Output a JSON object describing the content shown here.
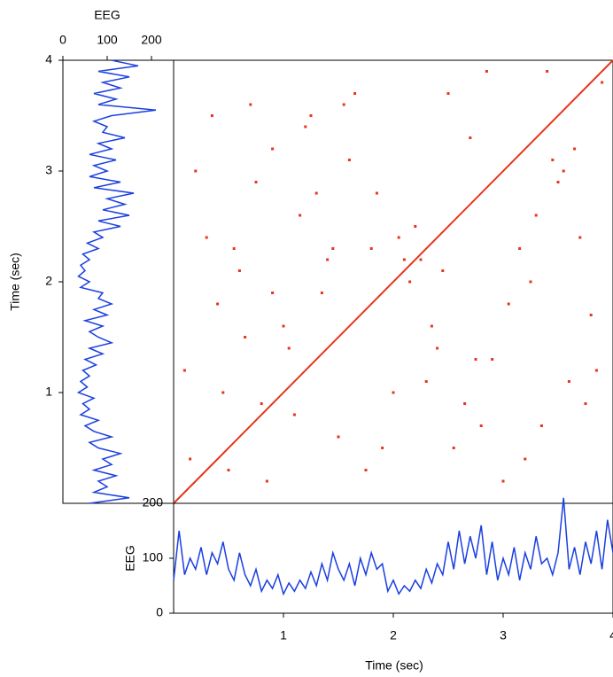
{
  "chart_data": [
    {
      "type": "line",
      "orientation": "vertical",
      "xlabel": "EEG",
      "ylabel": "Time (sec)",
      "xlim": [
        0,
        250
      ],
      "xticks": [
        0,
        100,
        200
      ],
      "ylim": [
        0,
        4
      ],
      "yticks": [
        1,
        2,
        3,
        4
      ],
      "series": [
        {
          "color": "#1a3fe0",
          "x": [
            0,
            0.05,
            0.1,
            0.15,
            0.2,
            0.25,
            0.3,
            0.35,
            0.4,
            0.45,
            0.5,
            0.55,
            0.6,
            0.65,
            0.7,
            0.75,
            0.8,
            0.85,
            0.9,
            0.95,
            1,
            1.05,
            1.1,
            1.15,
            1.2,
            1.25,
            1.3,
            1.35,
            1.4,
            1.45,
            1.5,
            1.55,
            1.6,
            1.65,
            1.7,
            1.75,
            1.8,
            1.85,
            1.9,
            1.95,
            2,
            2.05,
            2.1,
            2.15,
            2.2,
            2.25,
            2.3,
            2.35,
            2.4,
            2.45,
            2.5,
            2.55,
            2.6,
            2.65,
            2.7,
            2.75,
            2.8,
            2.85,
            2.9,
            2.95,
            3,
            3.05,
            3.1,
            3.15,
            3.2,
            3.25,
            3.3,
            3.35,
            3.4,
            3.45,
            3.5,
            3.55,
            3.6,
            3.65,
            3.7,
            3.75,
            3.8,
            3.85,
            3.9,
            3.95,
            4
          ],
          "values": [
            60,
            150,
            70,
            100,
            80,
            120,
            70,
            110,
            90,
            130,
            80,
            60,
            110,
            70,
            50,
            80,
            40,
            60,
            45,
            70,
            35,
            55,
            40,
            60,
            45,
            75,
            50,
            90,
            60,
            110,
            80,
            60,
            90,
            50,
            100,
            70,
            110,
            80,
            90,
            40,
            60,
            35,
            50,
            40,
            60,
            45,
            80,
            55,
            90,
            70,
            130,
            80,
            150,
            90,
            140,
            100,
            160,
            70,
            130,
            60,
            100,
            70,
            120,
            60,
            110,
            80,
            140,
            90,
            100,
            70,
            110,
            210,
            80,
            120,
            70,
            130,
            90,
            150,
            80,
            170,
            110
          ]
        }
      ]
    },
    {
      "type": "scatter",
      "xlim": [
        0,
        4
      ],
      "ylim": [
        0,
        4
      ],
      "series": [
        {
          "type": "line",
          "color": "#e8341c",
          "x": [
            0,
            4
          ],
          "values": [
            0,
            4
          ]
        },
        {
          "type": "scatter",
          "color": "#e8341c",
          "x": [
            0.1,
            0.3,
            0.5,
            0.7,
            0.9,
            1.1,
            1.3,
            1.6,
            1.9,
            2.1,
            2.4,
            2.7,
            3.0,
            3.3,
            3.6,
            3.9,
            0.2,
            0.6,
            0.8,
            1.0,
            1.2,
            1.5,
            1.8,
            2.0,
            2.2,
            2.5,
            2.9,
            3.2,
            3.5,
            3.8,
            0.4,
            0.9,
            1.4,
            2.3,
            2.8,
            3.4,
            3.7,
            0.15,
            0.65,
            1.15,
            1.65,
            2.15,
            2.65,
            3.15,
            3.65,
            0.35,
            0.85,
            1.35,
            1.85,
            2.35,
            2.85,
            3.35,
            3.85,
            0.55,
            1.05,
            1.55,
            2.05,
            2.55,
            3.05,
            3.55,
            0.75,
            1.25,
            1.75,
            2.25,
            2.75,
            3.25,
            3.75,
            0.45,
            1.45,
            2.45,
            3.45
          ],
          "values": [
            1.2,
            2.4,
            0.3,
            3.6,
            1.9,
            0.8,
            2.8,
            3.1,
            0.5,
            2.2,
            1.4,
            3.3,
            0.2,
            2.6,
            1.1,
            3.8,
            3.0,
            2.1,
            0.9,
            1.6,
            3.4,
            0.6,
            2.3,
            1.0,
            2.5,
            3.7,
            1.3,
            0.4,
            2.9,
            1.7,
            1.8,
            3.2,
            2.2,
            1.1,
            0.7,
            3.9,
            2.4,
            0.4,
            1.5,
            2.6,
            3.7,
            2.0,
            0.9,
            2.3,
            3.2,
            3.5,
            0.2,
            1.9,
            2.8,
            1.6,
            3.9,
            0.7,
            1.2,
            2.3,
            1.4,
            3.6,
            2.4,
            0.5,
            1.8,
            3.0,
            2.9,
            3.5,
            0.3,
            2.2,
            1.3,
            2.0,
            0.9,
            1.0,
            2.3,
            2.1,
            3.1
          ]
        }
      ]
    },
    {
      "type": "line",
      "orientation": "horizontal",
      "xlabel": "Time (sec)",
      "ylabel": "EEG",
      "xlim": [
        0,
        4
      ],
      "xticks": [
        1,
        2,
        3,
        4
      ],
      "ylim": [
        0,
        200
      ],
      "yticks": [
        0,
        100,
        200
      ],
      "series": [
        {
          "color": "#1a3fe0",
          "x": [
            0,
            0.05,
            0.1,
            0.15,
            0.2,
            0.25,
            0.3,
            0.35,
            0.4,
            0.45,
            0.5,
            0.55,
            0.6,
            0.65,
            0.7,
            0.75,
            0.8,
            0.85,
            0.9,
            0.95,
            1,
            1.05,
            1.1,
            1.15,
            1.2,
            1.25,
            1.3,
            1.35,
            1.4,
            1.45,
            1.5,
            1.55,
            1.6,
            1.65,
            1.7,
            1.75,
            1.8,
            1.85,
            1.9,
            1.95,
            2,
            2.05,
            2.1,
            2.15,
            2.2,
            2.25,
            2.3,
            2.35,
            2.4,
            2.45,
            2.5,
            2.55,
            2.6,
            2.65,
            2.7,
            2.75,
            2.8,
            2.85,
            2.9,
            2.95,
            3,
            3.05,
            3.1,
            3.15,
            3.2,
            3.25,
            3.3,
            3.35,
            3.4,
            3.45,
            3.5,
            3.55,
            3.6,
            3.65,
            3.7,
            3.75,
            3.8,
            3.85,
            3.9,
            3.95,
            4
          ],
          "values": [
            60,
            150,
            70,
            100,
            80,
            120,
            70,
            110,
            90,
            130,
            80,
            60,
            110,
            70,
            50,
            80,
            40,
            60,
            45,
            70,
            35,
            55,
            40,
            60,
            45,
            75,
            50,
            90,
            60,
            110,
            80,
            60,
            90,
            50,
            100,
            70,
            110,
            80,
            90,
            40,
            60,
            35,
            50,
            40,
            60,
            45,
            80,
            55,
            90,
            70,
            130,
            80,
            150,
            90,
            140,
            100,
            160,
            70,
            130,
            60,
            100,
            70,
            120,
            60,
            110,
            80,
            140,
            90,
            100,
            70,
            110,
            210,
            80,
            120,
            70,
            130,
            90,
            150,
            80,
            170,
            110
          ]
        }
      ]
    }
  ]
}
